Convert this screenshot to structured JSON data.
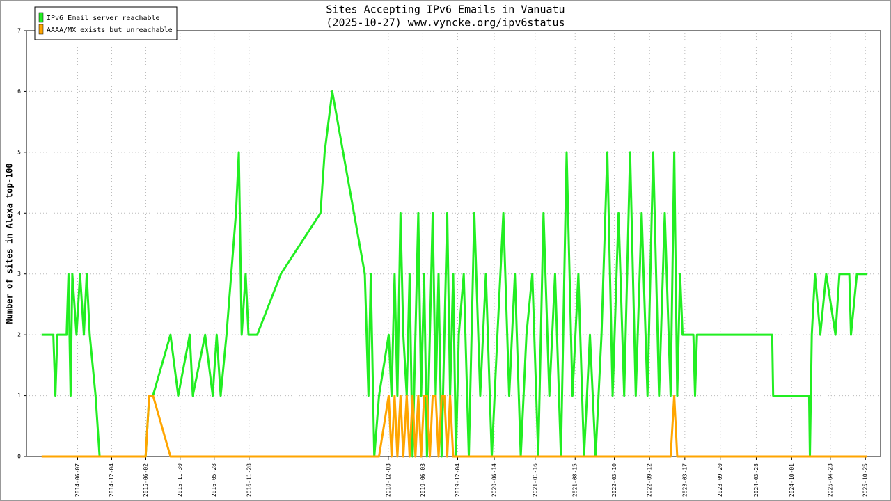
{
  "chart_data": {
    "type": "line",
    "title": "Sites Accepting IPv6 Emails in Vanuatu",
    "subtitle": "(2025-10-27) www.vyncke.org/ipv6status",
    "y_label": "Number of sites in Alexa top-100",
    "legend": "top-left",
    "grid": true,
    "x": [
      "2013-11-29",
      "2014-01-30",
      "2014-02-10",
      "2014-02-20",
      "2014-04-10",
      "2014-04-20",
      "2014-05-01",
      "2014-05-10",
      "2014-06-01",
      "2014-06-20",
      "2014-07-10",
      "2014-07-25",
      "2014-08-10",
      "2014-09-10",
      "2014-10-01",
      "2015-06-01",
      "2015-06-20",
      "2015-07-10",
      "2015-10-10",
      "2015-11-20",
      "2016-01-20",
      "2016-02-05",
      "2016-04-10",
      "2016-05-20",
      "2016-06-10",
      "2016-07-01",
      "2016-08-01",
      "2016-09-20",
      "2016-10-05",
      "2016-10-20",
      "2016-11-10",
      "2016-11-25",
      "2017-01-10",
      "2017-05-15",
      "2017-12-10",
      "2018-01-01",
      "2018-02-10",
      "2018-08-01",
      "2018-08-20",
      "2018-09-01",
      "2018-09-20",
      "2018-10-15",
      "2018-12-05",
      "2018-12-20",
      "2019-01-05",
      "2019-01-20",
      "2019-02-05",
      "2019-02-20",
      "2019-03-10",
      "2019-03-25",
      "2019-04-10",
      "2019-04-25",
      "2019-05-10",
      "2019-05-25",
      "2019-06-10",
      "2019-06-25",
      "2019-07-10",
      "2019-07-25",
      "2019-08-10",
      "2019-08-25",
      "2019-09-10",
      "2019-09-25",
      "2019-10-10",
      "2019-10-25",
      "2019-11-10",
      "2019-11-25",
      "2019-12-10",
      "2020-01-05",
      "2020-02-01",
      "2020-03-01",
      "2020-04-01",
      "2020-05-01",
      "2020-06-01",
      "2020-07-01",
      "2020-08-01",
      "2020-09-01",
      "2020-10-01",
      "2020-11-01",
      "2020-12-01",
      "2021-01-01",
      "2021-02-01",
      "2021-03-01",
      "2021-04-01",
      "2021-05-01",
      "2021-06-01",
      "2021-07-01",
      "2021-08-01",
      "2021-09-01",
      "2021-10-01",
      "2021-11-01",
      "2021-12-01",
      "2022-01-01",
      "2022-02-01",
      "2022-03-01",
      "2022-04-01",
      "2022-05-01",
      "2022-06-01",
      "2022-07-01",
      "2022-08-01",
      "2022-09-01",
      "2022-10-01",
      "2022-11-01",
      "2022-12-01",
      "2023-01-01",
      "2023-01-20",
      "2023-02-05",
      "2023-02-20",
      "2023-03-05",
      "2023-05-01",
      "2023-05-10",
      "2023-05-20",
      "2024-06-20",
      "2024-06-25",
      "2025-01-01",
      "2025-01-05",
      "2025-01-15",
      "2025-02-01",
      "2025-03-01",
      "2025-04-01",
      "2025-05-20",
      "2025-06-10",
      "2025-08-01",
      "2025-08-10",
      "2025-09-10",
      "2025-11-01"
    ],
    "series": [
      {
        "name": "IPv6 Email server reachable",
        "color": "#22ee22",
        "values": [
          2,
          2,
          1,
          2,
          2,
          3,
          1,
          3,
          2,
          3,
          2,
          3,
          2,
          1,
          0,
          0,
          1,
          1,
          2,
          1,
          2,
          1,
          2,
          1,
          2,
          1,
          2,
          4,
          5,
          2,
          3,
          2,
          2,
          3,
          4,
          5,
          6,
          3,
          1,
          3,
          0,
          1,
          2,
          1,
          3,
          1,
          4,
          2,
          1,
          3,
          0,
          2,
          4,
          1,
          3,
          0,
          2,
          4,
          1,
          3,
          0,
          2,
          4,
          1,
          3,
          0,
          2,
          3,
          0,
          4,
          1,
          3,
          0,
          2,
          4,
          1,
          3,
          0,
          2,
          3,
          0,
          4,
          1,
          3,
          0,
          5,
          1,
          3,
          0,
          2,
          0,
          2,
          5,
          1,
          4,
          1,
          5,
          1,
          4,
          1,
          5,
          1,
          4,
          1,
          5,
          1,
          3,
          2,
          2,
          1,
          2,
          2,
          1,
          1,
          0,
          2,
          3,
          2,
          3,
          2,
          3,
          3,
          2,
          3,
          3
        ]
      },
      {
        "name": "AAAA/MX exists but unreachable",
        "color": "#ffa500",
        "values": [
          0,
          0,
          0,
          0,
          0,
          0,
          0,
          0,
          0,
          0,
          0,
          0,
          0,
          0,
          0,
          0,
          1,
          1,
          0,
          0,
          0,
          0,
          0,
          0,
          0,
          0,
          0,
          0,
          0,
          0,
          0,
          0,
          0,
          0,
          0,
          0,
          0,
          0,
          0,
          0,
          0,
          0,
          1,
          0,
          1,
          0,
          1,
          0,
          1,
          0,
          1,
          0,
          1,
          0,
          1,
          1,
          0,
          1,
          1,
          0,
          1,
          1,
          0,
          1,
          0,
          0,
          0,
          0,
          0,
          0,
          0,
          0,
          0,
          0,
          0,
          0,
          0,
          0,
          0,
          0,
          0,
          0,
          0,
          0,
          0,
          0,
          0,
          0,
          0,
          0,
          0,
          0,
          0,
          0,
          0,
          0,
          0,
          0,
          0,
          0,
          0,
          0,
          0,
          0,
          1,
          0,
          0,
          0,
          0,
          0,
          0,
          0,
          0,
          0,
          0,
          0,
          0,
          0,
          0,
          0,
          0,
          0,
          0,
          0,
          0
        ]
      }
    ],
    "xlim": [
      "2013-09-10",
      "2026-01-13"
    ],
    "xticks": [
      "2014-06-07",
      "2014-12-04",
      "2015-06-02",
      "2015-11-30",
      "2016-05-28",
      "2016-11-28",
      "2018-12-03",
      "2019-06-03",
      "2019-12-04",
      "2020-06-14",
      "2021-01-16",
      "2021-08-15",
      "2022-03-10",
      "2022-09-12",
      "2023-03-17",
      "2023-09-20",
      "2024-03-28",
      "2024-10-01",
      "2025-04-23",
      "2025-10-25"
    ],
    "ylim": [
      0,
      7
    ],
    "yticks": [
      0,
      1,
      2,
      3,
      4,
      5,
      6,
      7
    ]
  }
}
